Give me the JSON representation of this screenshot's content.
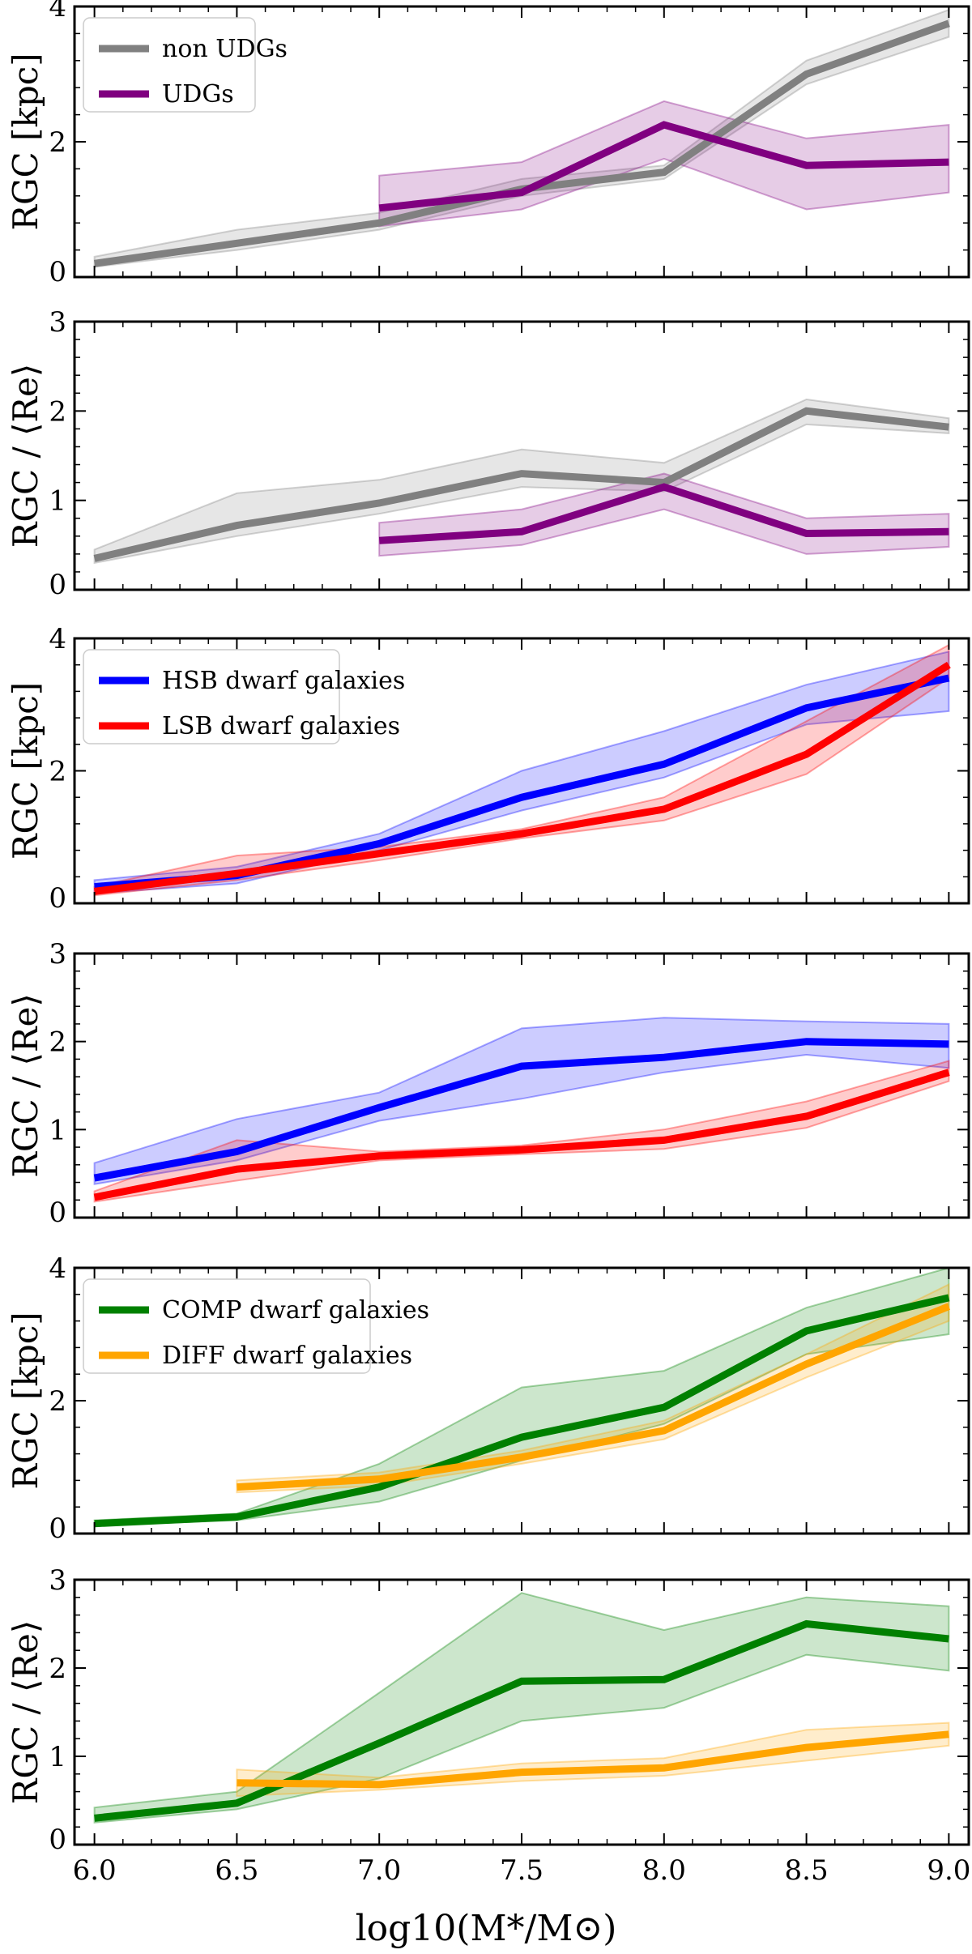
{
  "figure": {
    "xlabel": "log10(M*/M⊙)",
    "x_ticks": [
      "6.0",
      "6.5",
      "7.0",
      "7.5",
      "8.0",
      "8.5",
      "9.0"
    ]
  },
  "chart_data": [
    {
      "type": "line",
      "ylabel": "RGC [kpc]",
      "ylim": [
        0,
        4
      ],
      "y_ticks": [
        0,
        2,
        4
      ],
      "xlim": [
        5.93,
        9.07
      ],
      "legend_position": "top-left",
      "series": [
        {
          "name": "non UDGs",
          "color": "#808080",
          "x": [
            6.0,
            6.5,
            7.0,
            7.5,
            8.0,
            8.5,
            9.0
          ],
          "values": [
            0.2,
            0.5,
            0.8,
            1.3,
            1.55,
            3.0,
            3.75
          ],
          "lower": [
            0.15,
            0.4,
            0.7,
            1.2,
            1.45,
            2.85,
            3.55
          ],
          "upper": [
            0.3,
            0.7,
            0.95,
            1.45,
            1.65,
            3.2,
            3.95
          ]
        },
        {
          "name": "UDGs",
          "color": "#800080",
          "x": [
            7.0,
            7.5,
            8.0,
            8.5,
            9.0
          ],
          "values": [
            1.02,
            1.25,
            2.25,
            1.65,
            1.7
          ],
          "lower": [
            0.75,
            1.0,
            1.75,
            1.0,
            1.25
          ],
          "upper": [
            1.5,
            1.7,
            2.6,
            2.05,
            2.25
          ]
        }
      ]
    },
    {
      "type": "line",
      "ylabel": "RGC / ⟨Re⟩",
      "ylim": [
        0,
        3
      ],
      "y_ticks": [
        0,
        1,
        2,
        3
      ],
      "xlim": [
        5.93,
        9.07
      ],
      "legend_position": "none",
      "series": [
        {
          "name": "non UDGs",
          "color": "#808080",
          "x": [
            6.0,
            6.5,
            7.0,
            7.5,
            8.0,
            8.5,
            9.0
          ],
          "values": [
            0.35,
            0.72,
            0.97,
            1.3,
            1.2,
            2.0,
            1.82
          ],
          "lower": [
            0.3,
            0.6,
            0.85,
            1.15,
            1.1,
            1.85,
            1.75
          ],
          "upper": [
            0.45,
            1.08,
            1.23,
            1.57,
            1.42,
            2.13,
            1.92
          ]
        },
        {
          "name": "UDGs",
          "color": "#800080",
          "x": [
            7.0,
            7.5,
            8.0,
            8.5,
            9.0
          ],
          "values": [
            0.55,
            0.65,
            1.15,
            0.63,
            0.65
          ],
          "lower": [
            0.38,
            0.5,
            0.9,
            0.4,
            0.48
          ],
          "upper": [
            0.75,
            0.9,
            1.3,
            0.8,
            0.85
          ]
        }
      ]
    },
    {
      "type": "line",
      "ylabel": "RGC [kpc]",
      "ylim": [
        0,
        4
      ],
      "y_ticks": [
        0,
        2,
        4
      ],
      "xlim": [
        5.93,
        9.07
      ],
      "legend_position": "top-left",
      "series": [
        {
          "name": "HSB dwarf galaxies",
          "color": "#0000ff",
          "x": [
            6.0,
            6.5,
            7.0,
            7.5,
            8.0,
            8.5,
            9.0
          ],
          "values": [
            0.25,
            0.42,
            0.9,
            1.6,
            2.1,
            2.95,
            3.4
          ],
          "lower": [
            0.15,
            0.3,
            0.8,
            1.4,
            1.9,
            2.7,
            2.9
          ],
          "upper": [
            0.35,
            0.55,
            1.05,
            2.0,
            2.6,
            3.3,
            3.8
          ]
        },
        {
          "name": "LSB dwarf galaxies",
          "color": "#ff0000",
          "x": [
            6.0,
            6.5,
            7.0,
            7.5,
            8.0,
            8.5,
            9.0
          ],
          "values": [
            0.18,
            0.45,
            0.75,
            1.05,
            1.42,
            2.25,
            3.6
          ],
          "lower": [
            0.12,
            0.35,
            0.65,
            0.98,
            1.25,
            1.95,
            3.4
          ],
          "upper": [
            0.25,
            0.72,
            0.85,
            1.12,
            1.6,
            2.75,
            3.9
          ]
        }
      ]
    },
    {
      "type": "line",
      "ylabel": "RGC / ⟨Re⟩",
      "ylim": [
        0,
        3
      ],
      "y_ticks": [
        0,
        1,
        2,
        3
      ],
      "xlim": [
        5.93,
        9.07
      ],
      "legend_position": "none",
      "series": [
        {
          "name": "HSB dwarf galaxies",
          "color": "#0000ff",
          "x": [
            6.0,
            6.5,
            7.0,
            7.5,
            8.0,
            8.5,
            9.0
          ],
          "values": [
            0.45,
            0.75,
            1.25,
            1.72,
            1.82,
            2.0,
            1.97
          ],
          "lower": [
            0.38,
            0.65,
            1.1,
            1.35,
            1.65,
            1.85,
            1.7
          ],
          "upper": [
            0.62,
            1.12,
            1.42,
            2.15,
            2.27,
            2.23,
            2.2
          ]
        },
        {
          "name": "LSB dwarf galaxies",
          "color": "#ff0000",
          "x": [
            6.0,
            6.5,
            7.0,
            7.5,
            8.0,
            8.5,
            9.0
          ],
          "values": [
            0.23,
            0.55,
            0.7,
            0.77,
            0.88,
            1.15,
            1.65
          ],
          "lower": [
            0.18,
            0.42,
            0.65,
            0.72,
            0.78,
            1.02,
            1.55
          ],
          "upper": [
            0.3,
            0.88,
            0.75,
            0.82,
            1.0,
            1.32,
            1.78
          ]
        }
      ]
    },
    {
      "type": "line",
      "ylabel": "RGC [kpc]",
      "ylim": [
        0,
        4
      ],
      "y_ticks": [
        0,
        2,
        4
      ],
      "xlim": [
        5.93,
        9.07
      ],
      "legend_position": "top-left",
      "series": [
        {
          "name": "COMP dwarf galaxies",
          "color": "#008000",
          "x": [
            6.0,
            6.5,
            7.0,
            7.5,
            8.0,
            8.5,
            9.0
          ],
          "values": [
            0.15,
            0.25,
            0.7,
            1.45,
            1.9,
            3.05,
            3.55
          ],
          "lower": [
            0.12,
            0.2,
            0.48,
            1.1,
            1.65,
            2.7,
            3.0
          ],
          "upper": [
            0.2,
            0.3,
            1.05,
            2.2,
            2.45,
            3.4,
            4.0
          ]
        },
        {
          "name": "DIFF dwarf galaxies",
          "color": "#ffa500",
          "x": [
            6.5,
            7.0,
            7.5,
            8.0,
            8.5,
            9.0
          ],
          "values": [
            0.7,
            0.82,
            1.15,
            1.55,
            2.55,
            3.42
          ],
          "lower": [
            0.62,
            0.72,
            1.05,
            1.42,
            2.35,
            3.2
          ],
          "upper": [
            0.8,
            0.92,
            1.25,
            1.7,
            2.7,
            3.75
          ]
        }
      ]
    },
    {
      "type": "line",
      "ylabel": "RGC / ⟨Re⟩",
      "ylim": [
        0,
        3
      ],
      "y_ticks": [
        0,
        1,
        2,
        3
      ],
      "xlim": [
        5.93,
        9.07
      ],
      "legend_position": "none",
      "series": [
        {
          "name": "COMP dwarf galaxies",
          "color": "#008000",
          "x": [
            6.0,
            6.5,
            7.0,
            7.5,
            8.0,
            8.5,
            9.0
          ],
          "values": [
            0.3,
            0.47,
            1.15,
            1.85,
            1.87,
            2.5,
            2.33
          ],
          "lower": [
            0.25,
            0.4,
            0.75,
            1.4,
            1.55,
            2.15,
            1.97
          ],
          "upper": [
            0.42,
            0.6,
            1.72,
            2.85,
            2.43,
            2.8,
            2.7
          ]
        },
        {
          "name": "DIFF dwarf galaxies",
          "color": "#ffa500",
          "x": [
            6.5,
            7.0,
            7.5,
            8.0,
            8.5,
            9.0
          ],
          "values": [
            0.7,
            0.68,
            0.82,
            0.87,
            1.1,
            1.25
          ],
          "lower": [
            0.55,
            0.62,
            0.72,
            0.78,
            0.95,
            1.12
          ],
          "upper": [
            0.85,
            0.76,
            0.92,
            0.98,
            1.3,
            1.38
          ]
        }
      ]
    }
  ]
}
